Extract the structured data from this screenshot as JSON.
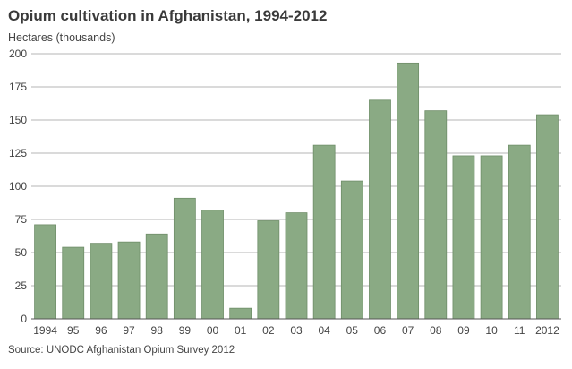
{
  "chart_data": {
    "type": "bar",
    "title": "Opium cultivation in Afghanistan, 1994-2012",
    "ylabel": "Hectares (thousands)",
    "xlabel": "",
    "source": "Source: UNODC Afghanistan Opium Survey 2012",
    "categories": [
      "1994",
      "95",
      "96",
      "97",
      "98",
      "99",
      "00",
      "01",
      "02",
      "03",
      "04",
      "05",
      "06",
      "07",
      "08",
      "09",
      "10",
      "11",
      "2012"
    ],
    "values": [
      71,
      54,
      57,
      58,
      64,
      91,
      82,
      8,
      74,
      80,
      131,
      104,
      165,
      193,
      157,
      123,
      123,
      131,
      154
    ],
    "yticks": [
      "0",
      "25",
      "50",
      "75",
      "100",
      "125",
      "150",
      "175",
      "200"
    ],
    "ylim": [
      0,
      200
    ],
    "grid": true,
    "bar_color": "#8aaa84",
    "bar_edge_color": "#6f8e69",
    "grid_color": "#b5b5b5"
  }
}
